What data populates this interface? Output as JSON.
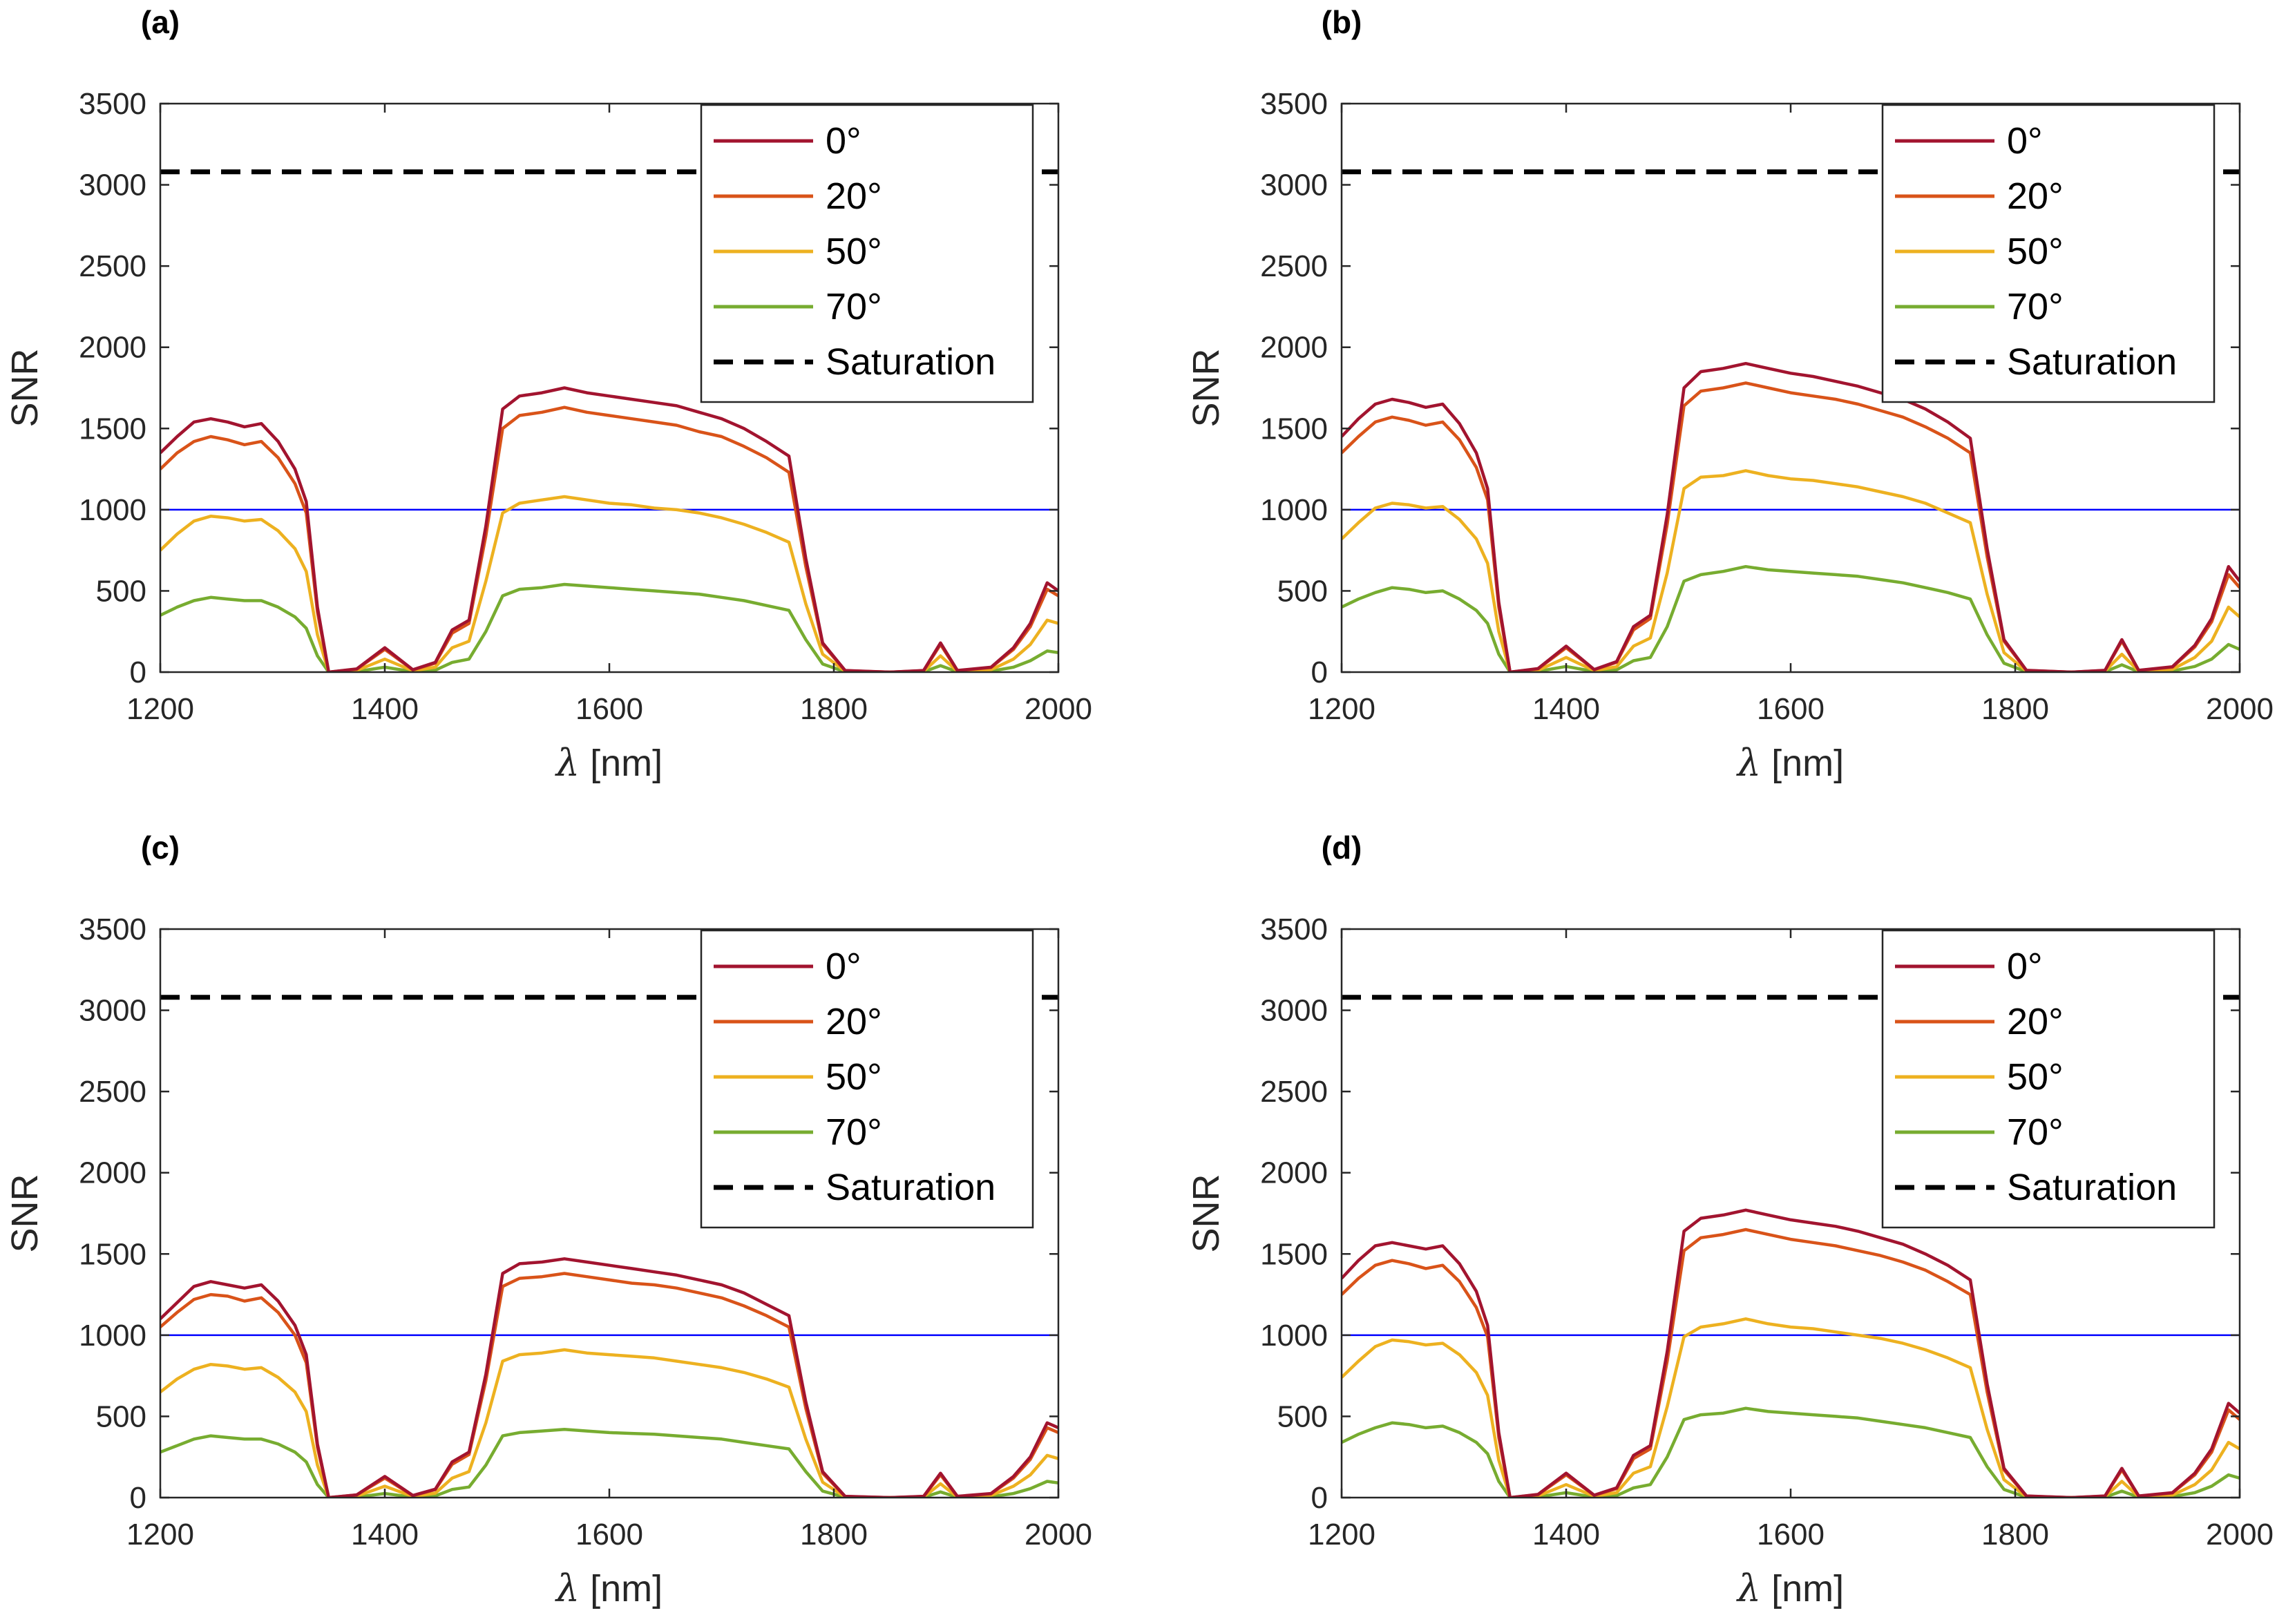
{
  "figure": {
    "shared": {
      "xlabel_symbol": "λ",
      "xlabel_unit": " [nm]",
      "ylabel": "SNR",
      "xlim": [
        1200,
        2000
      ],
      "ylim": [
        0,
        3500
      ],
      "x_ticks": [
        1200,
        1400,
        1600,
        1800,
        2000
      ],
      "y_ticks": [
        0,
        500,
        1000,
        1500,
        2000,
        2500,
        3000,
        3500
      ],
      "saturation_level": 3080,
      "reference_level": 1000,
      "reference_color": "#0000ff",
      "legend_position": "top-right",
      "series_styles": [
        {
          "name": "0°",
          "color": "#a2142f",
          "style": "solid"
        },
        {
          "name": "20°",
          "color": "#d95319",
          "style": "solid"
        },
        {
          "name": "50°",
          "color": "#edb120",
          "style": "solid"
        },
        {
          "name": "70°",
          "color": "#77ac30",
          "style": "solid"
        },
        {
          "name": "Saturation",
          "color": "#000000",
          "style": "dashed"
        }
      ]
    }
  },
  "chart_data": [
    {
      "type": "line",
      "panel_label": "(a)",
      "title": "",
      "xlabel": "λ [nm]",
      "ylabel": "SNR",
      "xlim": [
        1200,
        2000
      ],
      "ylim": [
        0,
        3500
      ],
      "x": [
        1200,
        1215,
        1230,
        1245,
        1260,
        1275,
        1290,
        1305,
        1320,
        1330,
        1340,
        1350,
        1375,
        1400,
        1425,
        1445,
        1460,
        1475,
        1490,
        1505,
        1520,
        1540,
        1560,
        1580,
        1600,
        1620,
        1640,
        1660,
        1680,
        1700,
        1720,
        1740,
        1760,
        1775,
        1790,
        1810,
        1850,
        1880,
        1895,
        1910,
        1940,
        1960,
        1975,
        1990,
        2000
      ],
      "series": [
        {
          "name": "0°",
          "values": [
            1350,
            1450,
            1540,
            1560,
            1540,
            1510,
            1530,
            1420,
            1250,
            1050,
            400,
            0,
            20,
            150,
            15,
            60,
            260,
            320,
            900,
            1620,
            1700,
            1720,
            1750,
            1720,
            1700,
            1680,
            1660,
            1640,
            1600,
            1560,
            1500,
            1420,
            1330,
            700,
            180,
            10,
            0,
            10,
            180,
            10,
            30,
            150,
            300,
            550,
            500
          ]
        },
        {
          "name": "20°",
          "values": [
            1250,
            1350,
            1420,
            1450,
            1430,
            1400,
            1420,
            1320,
            1160,
            980,
            370,
            0,
            18,
            140,
            14,
            55,
            240,
            300,
            840,
            1500,
            1580,
            1600,
            1630,
            1600,
            1580,
            1560,
            1540,
            1520,
            1480,
            1450,
            1390,
            1320,
            1230,
            650,
            170,
            9,
            0,
            9,
            170,
            9,
            28,
            140,
            280,
            510,
            470
          ]
        },
        {
          "name": "50°",
          "values": [
            750,
            850,
            930,
            960,
            950,
            930,
            940,
            870,
            760,
            620,
            230,
            0,
            10,
            80,
            8,
            30,
            150,
            190,
            560,
            980,
            1040,
            1060,
            1080,
            1060,
            1040,
            1030,
            1010,
            1000,
            980,
            950,
            910,
            860,
            800,
            420,
            110,
            5,
            0,
            5,
            100,
            5,
            15,
            80,
            170,
            320,
            300
          ]
        },
        {
          "name": "70°",
          "values": [
            350,
            400,
            440,
            460,
            450,
            440,
            440,
            400,
            340,
            270,
            100,
            0,
            4,
            30,
            3,
            12,
            60,
            80,
            250,
            470,
            510,
            520,
            540,
            530,
            520,
            510,
            500,
            490,
            480,
            460,
            440,
            410,
            380,
            200,
            50,
            2,
            0,
            2,
            40,
            2,
            6,
            30,
            70,
            130,
            120
          ]
        }
      ],
      "legend": [
        "0°",
        "20°",
        "50°",
        "70°",
        "Saturation"
      ]
    },
    {
      "type": "line",
      "panel_label": "(b)",
      "title": "",
      "xlabel": "λ [nm]",
      "ylabel": "SNR",
      "xlim": [
        1200,
        2000
      ],
      "ylim": [
        0,
        3500
      ],
      "x": [
        1200,
        1215,
        1230,
        1245,
        1260,
        1275,
        1290,
        1305,
        1320,
        1330,
        1340,
        1350,
        1375,
        1400,
        1425,
        1445,
        1460,
        1475,
        1490,
        1505,
        1520,
        1540,
        1560,
        1580,
        1600,
        1620,
        1640,
        1660,
        1680,
        1700,
        1720,
        1740,
        1760,
        1775,
        1790,
        1810,
        1850,
        1880,
        1895,
        1910,
        1940,
        1960,
        1975,
        1990,
        2000
      ],
      "series": [
        {
          "name": "0°",
          "values": [
            1450,
            1560,
            1650,
            1680,
            1660,
            1630,
            1650,
            1530,
            1350,
            1130,
            430,
            0,
            22,
            160,
            16,
            65,
            280,
            350,
            970,
            1750,
            1850,
            1870,
            1900,
            1870,
            1840,
            1820,
            1790,
            1760,
            1720,
            1680,
            1620,
            1540,
            1440,
            760,
            200,
            11,
            0,
            11,
            200,
            11,
            33,
            165,
            330,
            650,
            560
          ]
        },
        {
          "name": "20°",
          "values": [
            1350,
            1450,
            1540,
            1570,
            1550,
            1520,
            1540,
            1430,
            1260,
            1060,
            400,
            0,
            20,
            150,
            15,
            60,
            260,
            330,
            910,
            1640,
            1730,
            1750,
            1780,
            1750,
            1720,
            1700,
            1680,
            1650,
            1610,
            1570,
            1510,
            1440,
            1350,
            710,
            190,
            10,
            0,
            10,
            190,
            10,
            30,
            155,
            310,
            600,
            520
          ]
        },
        {
          "name": "50°",
          "values": [
            820,
            920,
            1010,
            1040,
            1030,
            1010,
            1020,
            940,
            820,
            670,
            250,
            0,
            11,
            90,
            9,
            33,
            160,
            210,
            610,
            1130,
            1200,
            1210,
            1240,
            1210,
            1190,
            1180,
            1160,
            1140,
            1110,
            1080,
            1040,
            980,
            920,
            480,
            120,
            6,
            0,
            6,
            110,
            6,
            17,
            90,
            190,
            400,
            340
          ]
        },
        {
          "name": "70°",
          "values": [
            400,
            450,
            490,
            520,
            510,
            490,
            500,
            450,
            380,
            300,
            110,
            0,
            5,
            35,
            4,
            14,
            70,
            90,
            280,
            560,
            600,
            620,
            650,
            630,
            620,
            610,
            600,
            590,
            570,
            550,
            520,
            490,
            450,
            230,
            55,
            2,
            0,
            2,
            45,
            2,
            7,
            35,
            80,
            170,
            140
          ]
        }
      ],
      "legend": [
        "0°",
        "20°",
        "50°",
        "70°",
        "Saturation"
      ]
    },
    {
      "type": "line",
      "panel_label": "(c)",
      "title": "",
      "xlabel": "λ [nm]",
      "ylabel": "SNR",
      "xlim": [
        1200,
        2000
      ],
      "ylim": [
        0,
        3500
      ],
      "x": [
        1200,
        1215,
        1230,
        1245,
        1260,
        1275,
        1290,
        1305,
        1320,
        1330,
        1340,
        1350,
        1375,
        1400,
        1425,
        1445,
        1460,
        1475,
        1490,
        1505,
        1520,
        1540,
        1560,
        1580,
        1600,
        1620,
        1640,
        1660,
        1680,
        1700,
        1720,
        1740,
        1760,
        1775,
        1790,
        1810,
        1850,
        1880,
        1895,
        1910,
        1940,
        1960,
        1975,
        1990,
        2000
      ],
      "series": [
        {
          "name": "0°",
          "values": [
            1100,
            1200,
            1300,
            1330,
            1310,
            1290,
            1310,
            1210,
            1060,
            880,
            330,
            0,
            17,
            130,
            13,
            52,
            220,
            280,
            760,
            1380,
            1440,
            1450,
            1470,
            1450,
            1430,
            1410,
            1390,
            1370,
            1340,
            1310,
            1260,
            1190,
            1120,
            590,
            160,
            8,
            0,
            8,
            150,
            8,
            25,
            130,
            250,
            460,
            430
          ]
        },
        {
          "name": "20°",
          "values": [
            1050,
            1140,
            1220,
            1250,
            1240,
            1210,
            1230,
            1140,
            1000,
            830,
            310,
            0,
            16,
            120,
            12,
            49,
            205,
            265,
            720,
            1300,
            1350,
            1360,
            1380,
            1360,
            1340,
            1320,
            1310,
            1290,
            1260,
            1230,
            1180,
            1120,
            1050,
            550,
            150,
            7,
            0,
            7,
            140,
            7,
            23,
            120,
            235,
            430,
            400
          ]
        },
        {
          "name": "50°",
          "values": [
            650,
            730,
            790,
            820,
            810,
            790,
            800,
            740,
            650,
            530,
            200,
            0,
            9,
            70,
            7,
            27,
            120,
            160,
            460,
            840,
            880,
            890,
            910,
            890,
            880,
            870,
            860,
            840,
            820,
            800,
            770,
            730,
            680,
            360,
            95,
            4,
            0,
            4,
            85,
            4,
            13,
            70,
            140,
            260,
            240
          ]
        },
        {
          "name": "70°",
          "values": [
            280,
            320,
            360,
            380,
            370,
            360,
            360,
            330,
            280,
            220,
            80,
            0,
            3,
            25,
            3,
            10,
            50,
            65,
            200,
            380,
            400,
            410,
            420,
            410,
            400,
            395,
            390,
            380,
            370,
            360,
            340,
            320,
            300,
            160,
            40,
            2,
            0,
            2,
            35,
            2,
            5,
            25,
            55,
            100,
            90
          ]
        }
      ],
      "legend": [
        "0°",
        "20°",
        "50°",
        "70°",
        "Saturation"
      ]
    },
    {
      "type": "line",
      "panel_label": "(d)",
      "title": "",
      "xlabel": "λ [nm]",
      "ylabel": "SNR",
      "xlim": [
        1200,
        2000
      ],
      "ylim": [
        0,
        3500
      ],
      "x": [
        1200,
        1215,
        1230,
        1245,
        1260,
        1275,
        1290,
        1305,
        1320,
        1330,
        1340,
        1350,
        1375,
        1400,
        1425,
        1445,
        1460,
        1475,
        1490,
        1505,
        1520,
        1540,
        1560,
        1580,
        1600,
        1620,
        1640,
        1660,
        1680,
        1700,
        1720,
        1740,
        1760,
        1775,
        1790,
        1810,
        1850,
        1880,
        1895,
        1910,
        1940,
        1960,
        1975,
        1990,
        2000
      ],
      "series": [
        {
          "name": "0°",
          "values": [
            1350,
            1460,
            1550,
            1570,
            1550,
            1530,
            1550,
            1440,
            1270,
            1060,
            400,
            0,
            20,
            150,
            15,
            60,
            260,
            320,
            900,
            1640,
            1720,
            1740,
            1770,
            1740,
            1710,
            1690,
            1670,
            1640,
            1600,
            1560,
            1500,
            1430,
            1340,
            700,
            180,
            10,
            0,
            10,
            180,
            10,
            30,
            150,
            300,
            580,
            520
          ]
        },
        {
          "name": "20°",
          "values": [
            1250,
            1350,
            1430,
            1460,
            1440,
            1410,
            1430,
            1330,
            1170,
            990,
            370,
            0,
            18,
            140,
            14,
            55,
            240,
            300,
            840,
            1520,
            1600,
            1620,
            1650,
            1620,
            1590,
            1570,
            1550,
            1520,
            1490,
            1450,
            1400,
            1330,
            1250,
            650,
            170,
            9,
            0,
            9,
            170,
            9,
            28,
            140,
            280,
            540,
            480
          ]
        },
        {
          "name": "50°",
          "values": [
            740,
            840,
            930,
            970,
            960,
            940,
            950,
            880,
            770,
            630,
            230,
            0,
            10,
            80,
            8,
            30,
            150,
            190,
            560,
            990,
            1050,
            1070,
            1100,
            1070,
            1050,
            1040,
            1020,
            1000,
            980,
            950,
            910,
            860,
            800,
            420,
            110,
            5,
            0,
            5,
            100,
            5,
            15,
            80,
            170,
            340,
            300
          ]
        },
        {
          "name": "70°",
          "values": [
            340,
            390,
            430,
            460,
            450,
            430,
            440,
            400,
            340,
            270,
            100,
            0,
            4,
            30,
            3,
            12,
            60,
            80,
            250,
            480,
            510,
            520,
            550,
            530,
            520,
            510,
            500,
            490,
            470,
            450,
            430,
            400,
            370,
            190,
            50,
            2,
            0,
            2,
            40,
            2,
            6,
            30,
            70,
            140,
            120
          ]
        }
      ],
      "legend": [
        "0°",
        "20°",
        "50°",
        "70°",
        "Saturation"
      ]
    }
  ]
}
